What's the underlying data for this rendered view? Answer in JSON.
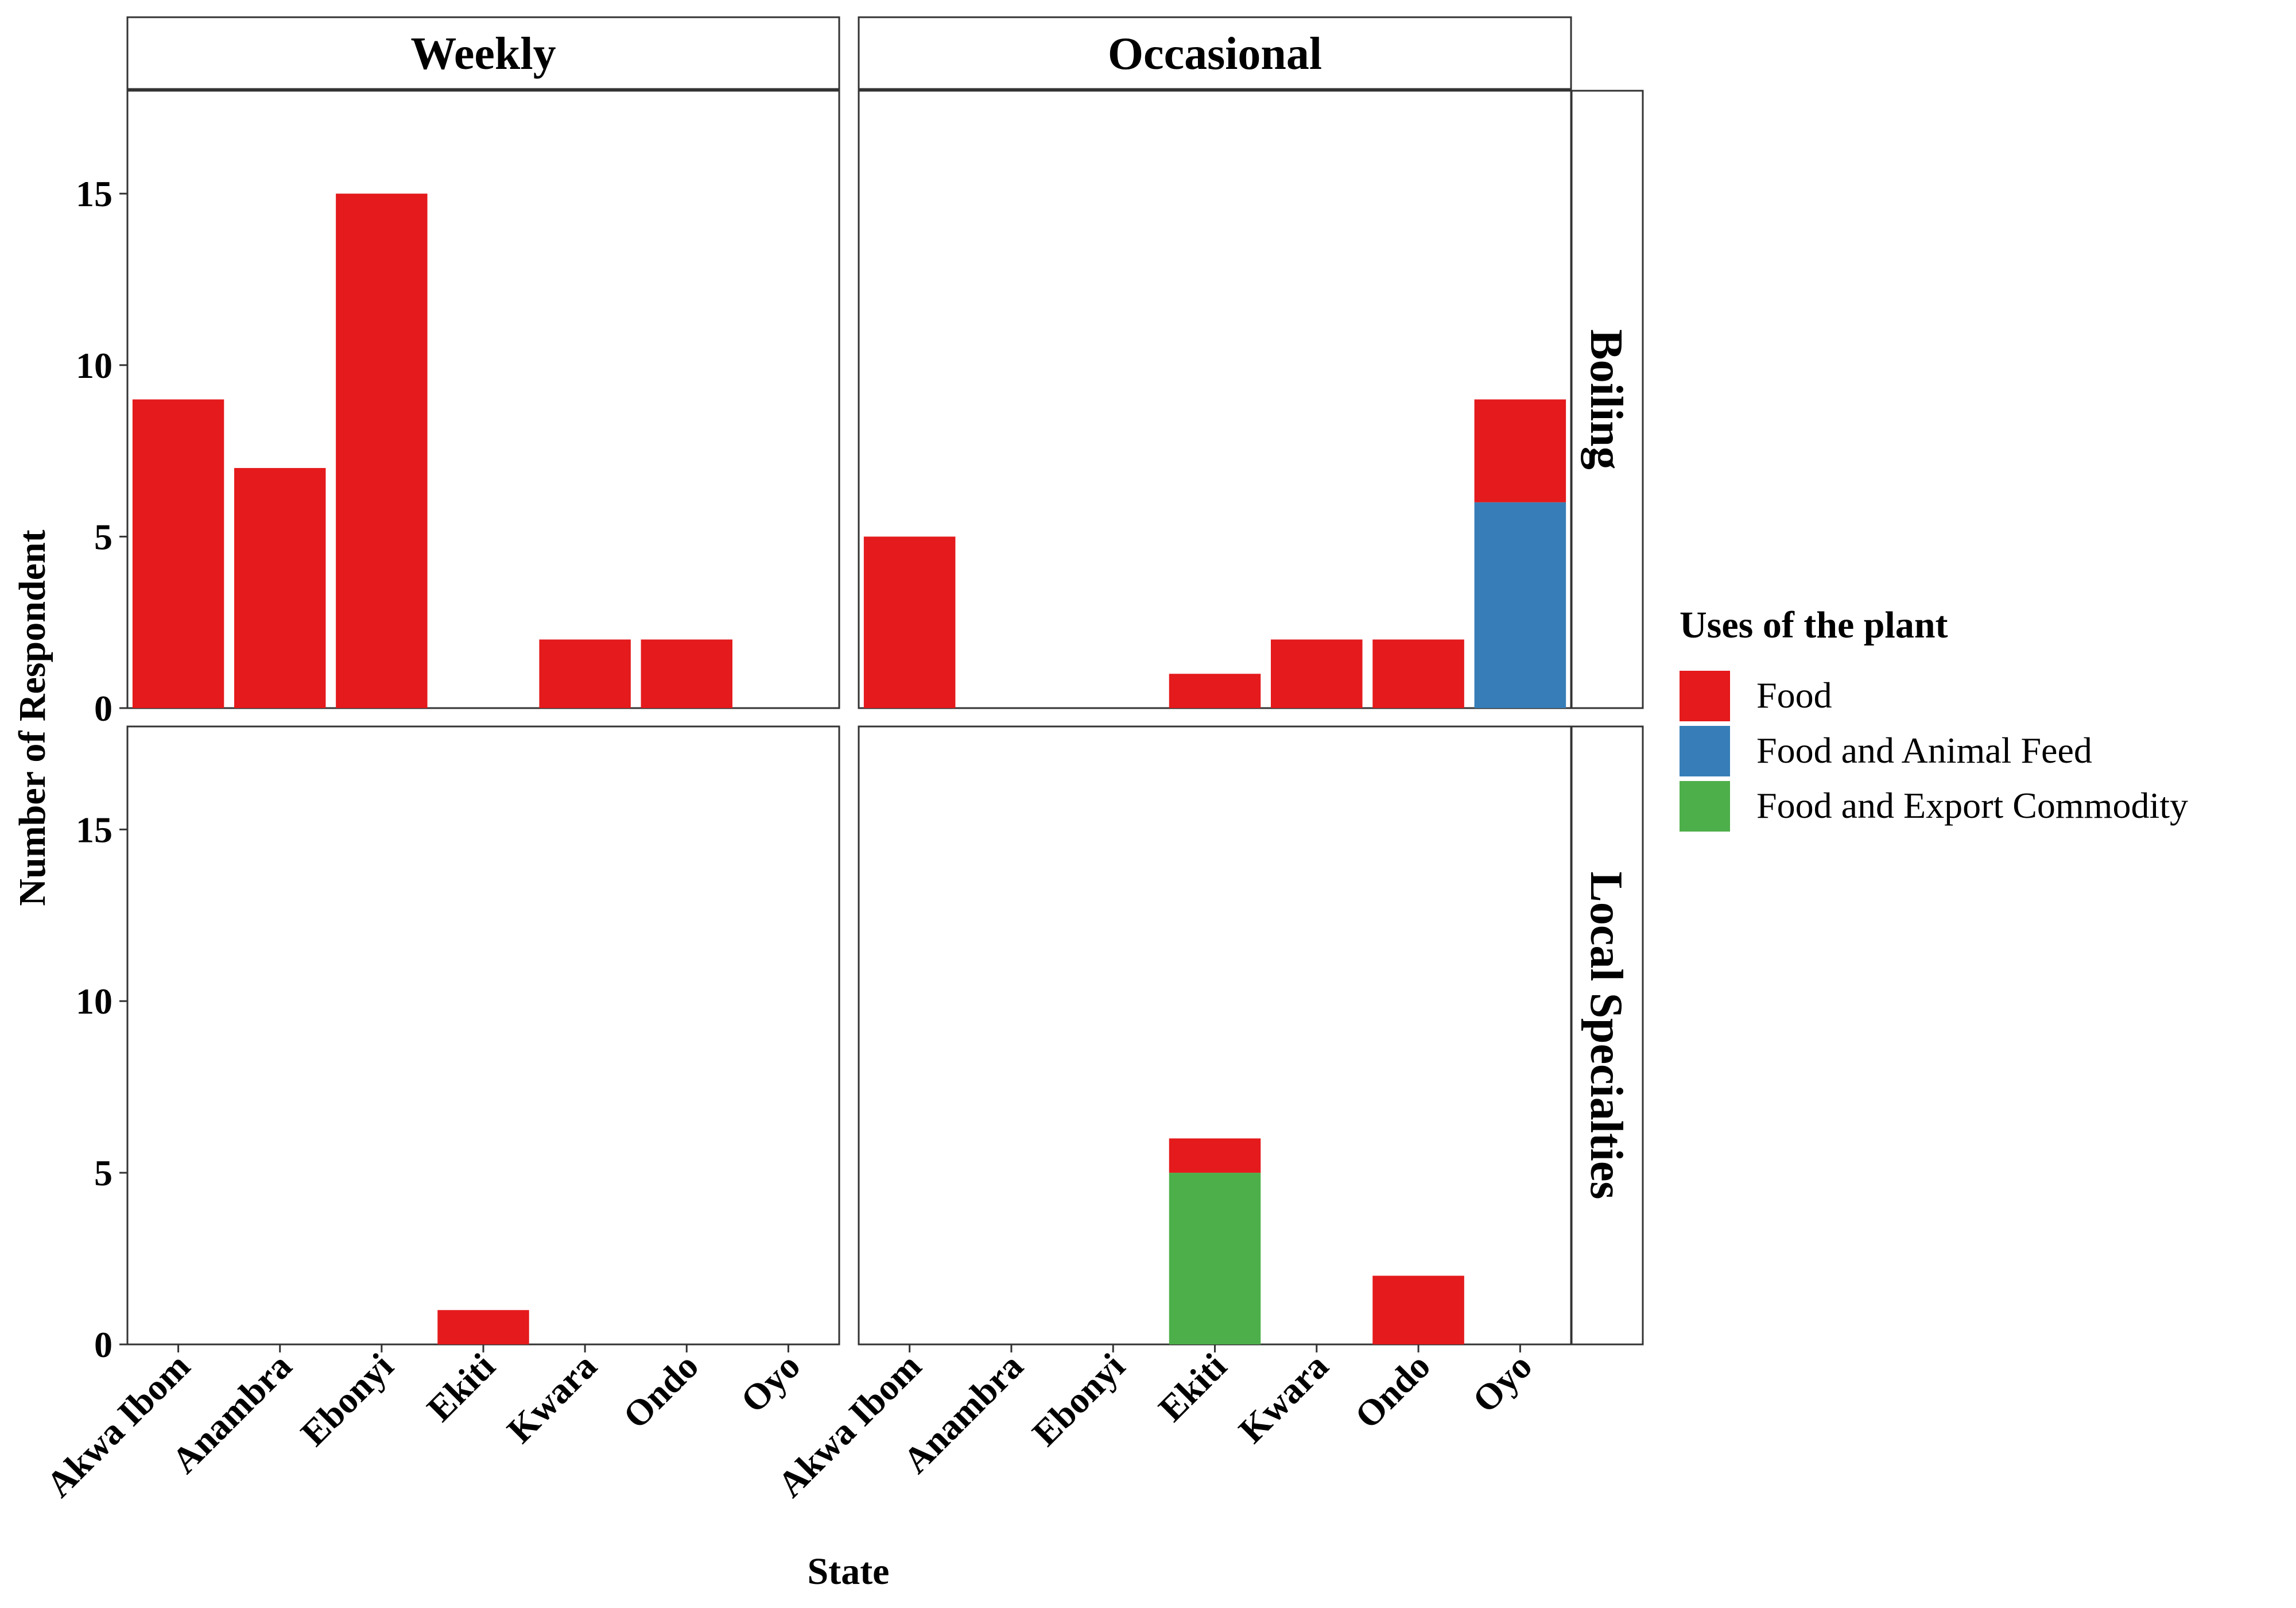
{
  "chart_data": {
    "type": "bar",
    "stacked": true,
    "xlabel": "State",
    "ylabel": "Number of Respondent",
    "ylim": [
      0,
      18
    ],
    "yticks": [
      0,
      5,
      10,
      15
    ],
    "categories": [
      "Akwa Ibom",
      "Anambra",
      "Ebonyi",
      "Ekiti",
      "Kwara",
      "Ondo",
      "Oyo"
    ],
    "column_facets": [
      "Weekly",
      "Occasional"
    ],
    "row_facets": [
      "Boiling",
      "Local Specialties"
    ],
    "grid": false,
    "legend": {
      "title": "Uses of the plant",
      "position": "right",
      "entries": [
        {
          "name": "Food",
          "color": "#E41A1C"
        },
        {
          "name": "Food and Animal Feed",
          "color": "#377EB8"
        },
        {
          "name": "Food and Export Commodity",
          "color": "#4DAF4A"
        }
      ]
    },
    "panels": [
      {
        "column": "Weekly",
        "row": "Boiling",
        "series": [
          {
            "name": "Food",
            "values": [
              9,
              7,
              15,
              0,
              2,
              2,
              0
            ]
          },
          {
            "name": "Food and Animal Feed",
            "values": [
              0,
              0,
              0,
              0,
              0,
              0,
              0
            ]
          },
          {
            "name": "Food and Export Commodity",
            "values": [
              0,
              0,
              0,
              0,
              0,
              0,
              0
            ]
          }
        ]
      },
      {
        "column": "Occasional",
        "row": "Boiling",
        "series": [
          {
            "name": "Food",
            "values": [
              5,
              0,
              0,
              1,
              2,
              2,
              3
            ]
          },
          {
            "name": "Food and Animal Feed",
            "values": [
              0,
              0,
              0,
              0,
              0,
              0,
              6
            ]
          },
          {
            "name": "Food and Export Commodity",
            "values": [
              0,
              0,
              0,
              0,
              0,
              0,
              0
            ]
          }
        ]
      },
      {
        "column": "Weekly",
        "row": "Local Specialties",
        "series": [
          {
            "name": "Food",
            "values": [
              0,
              0,
              0,
              1,
              0,
              0,
              0
            ]
          },
          {
            "name": "Food and Animal Feed",
            "values": [
              0,
              0,
              0,
              0,
              0,
              0,
              0
            ]
          },
          {
            "name": "Food and Export Commodity",
            "values": [
              0,
              0,
              0,
              0,
              0,
              0,
              0
            ]
          }
        ]
      },
      {
        "column": "Occasional",
        "row": "Local Specialties",
        "series": [
          {
            "name": "Food",
            "values": [
              0,
              0,
              0,
              1,
              0,
              2,
              0
            ]
          },
          {
            "name": "Food and Animal Feed",
            "values": [
              0,
              0,
              0,
              0,
              0,
              0,
              0
            ]
          },
          {
            "name": "Food and Export Commodity",
            "values": [
              0,
              0,
              0,
              5,
              0,
              0,
              0
            ]
          }
        ]
      }
    ]
  }
}
